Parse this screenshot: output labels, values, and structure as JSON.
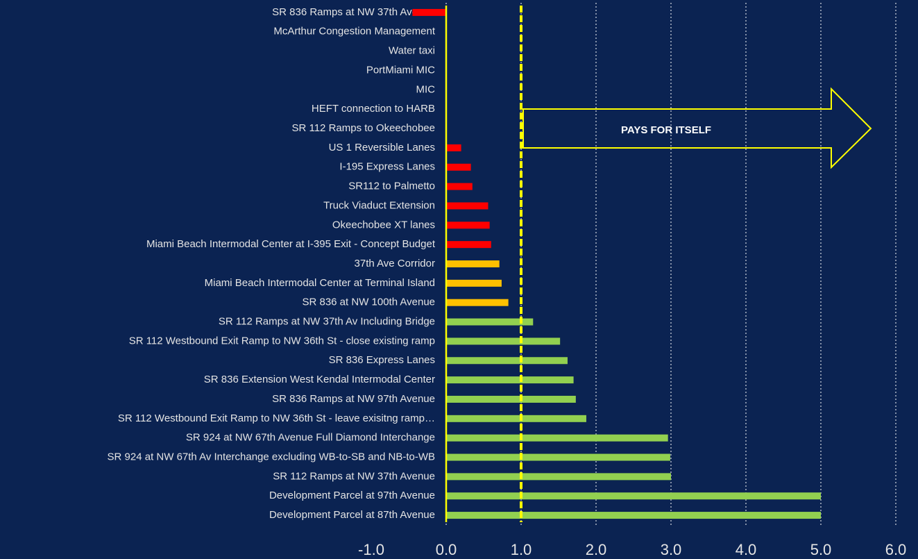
{
  "chart_data": {
    "type": "barh",
    "annotation": "PAYS FOR ITSELF",
    "threshold": 1,
    "categories": [
      "SR 836 Ramps at NW 37th Avenue",
      "McArthur Congestion Management",
      "Water taxi",
      "PortMiami MIC",
      "MIC",
      "HEFT connection to HARB",
      "SR 112 Ramps to Okeechobee",
      "US 1 Reversible Lanes",
      "I-195 Express Lanes",
      "SR112 to Palmetto",
      "Truck Viaduct Extension",
      "Okeechobee XT lanes",
      "Miami Beach Intermodal Center at I-395 Exit - Concept Budget",
      "37th Ave Corridor",
      "Miami Beach Intermodal Center at Terminal Island",
      "SR 836 at NW 100th Avenue",
      "SR 112 Ramps at NW 37th Av Including Bridge",
      "SR 112 Westbound Exit Ramp to NW 36th St - close existing ramp",
      "SR 836 Express Lanes",
      "SR 836 Extension West Kendal Intermodal Center",
      "SR 836 Ramps at NW 97th Avenue",
      "SR 112 Westbound Exit Ramp to NW 36th St - leave exisitng ramp…",
      "SR 924 at NW 67th Avenue Full Diamond Interchange",
      "SR 924 at NW 67th Av Interchange excluding WB-to-SB and NB-to-WB",
      "SR 112 Ramps at NW 37th Avenue",
      "Development Parcel at 97th Avenue",
      "Development Parcel at 87th Avenue"
    ],
    "values": [
      -0.45,
      0,
      0,
      0,
      0,
      0,
      0,
      0.2,
      0.33,
      0.35,
      0.56,
      0.58,
      0.6,
      0.71,
      0.74,
      0.83,
      1.16,
      1.52,
      1.62,
      1.7,
      1.73,
      1.87,
      2.96,
      2.99,
      3.0,
      5.0,
      5.0
    ],
    "colors": [
      "#ff0000",
      "#ff0000",
      "#ff0000",
      "#ff0000",
      "#ff0000",
      "#ff0000",
      "#ff0000",
      "#ff0000",
      "#ff0000",
      "#ff0000",
      "#ff0000",
      "#ff0000",
      "#ff0000",
      "#ffc000",
      "#ffc000",
      "#ffc000",
      "#92d050",
      "#92d050",
      "#92d050",
      "#92d050",
      "#92d050",
      "#92d050",
      "#92d050",
      "#92d050",
      "#92d050",
      "#92d050",
      "#92d050"
    ],
    "xlim": [
      -1,
      6
    ],
    "xticks": [
      {
        "value": -1,
        "label": "-1.0"
      },
      {
        "value": 0,
        "label": "0.0"
      },
      {
        "value": 1,
        "label": "1.0"
      },
      {
        "value": 2,
        "label": "2.0"
      },
      {
        "value": 3,
        "label": "3.0"
      },
      {
        "value": 4,
        "label": "4.0"
      },
      {
        "value": 5,
        "label": "5.0"
      },
      {
        "value": 6,
        "label": "6.0"
      }
    ],
    "grid": true
  }
}
